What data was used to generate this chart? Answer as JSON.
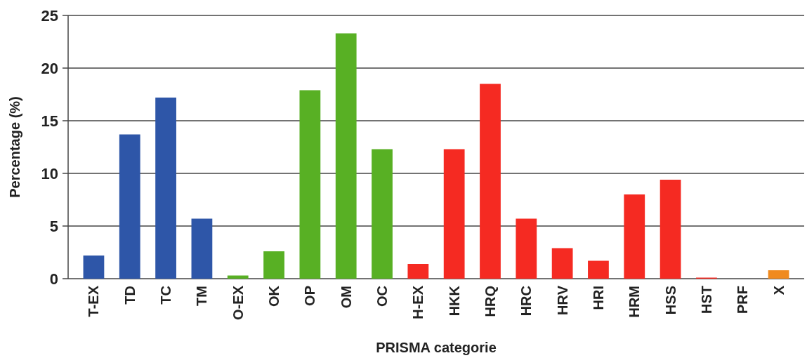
{
  "chart_data": {
    "type": "bar",
    "xlabel": "PRISMA categorie",
    "ylabel": "Percentage (%)",
    "categories": [
      "T-EX",
      "TD",
      "TC",
      "TM",
      "O-EX",
      "OK",
      "OP",
      "OM",
      "OC",
      "H-EX",
      "HKK",
      "HRQ",
      "HRC",
      "HRV",
      "HRI",
      "HRM",
      "HSS",
      "HST",
      "PRF",
      "X"
    ],
    "values": [
      2.2,
      13.7,
      17.2,
      5.7,
      0.3,
      2.6,
      17.9,
      23.3,
      12.3,
      1.4,
      12.3,
      18.5,
      5.7,
      2.9,
      1.7,
      8.0,
      9.4,
      0.1,
      0,
      0.8
    ],
    "colors": [
      "#2e56a8",
      "#2e56a8",
      "#2e56a8",
      "#2e56a8",
      "#58b024",
      "#58b024",
      "#58b024",
      "#58b024",
      "#58b024",
      "#f52a22",
      "#f52a22",
      "#f52a22",
      "#f52a22",
      "#f52a22",
      "#f52a22",
      "#f52a22",
      "#f52a22",
      "#f52a22",
      "#f52a22",
      "#f08a1e"
    ],
    "ylim": [
      0,
      25
    ],
    "yticks": [
      0,
      5,
      10,
      15,
      20,
      25
    ],
    "grid": "y"
  }
}
